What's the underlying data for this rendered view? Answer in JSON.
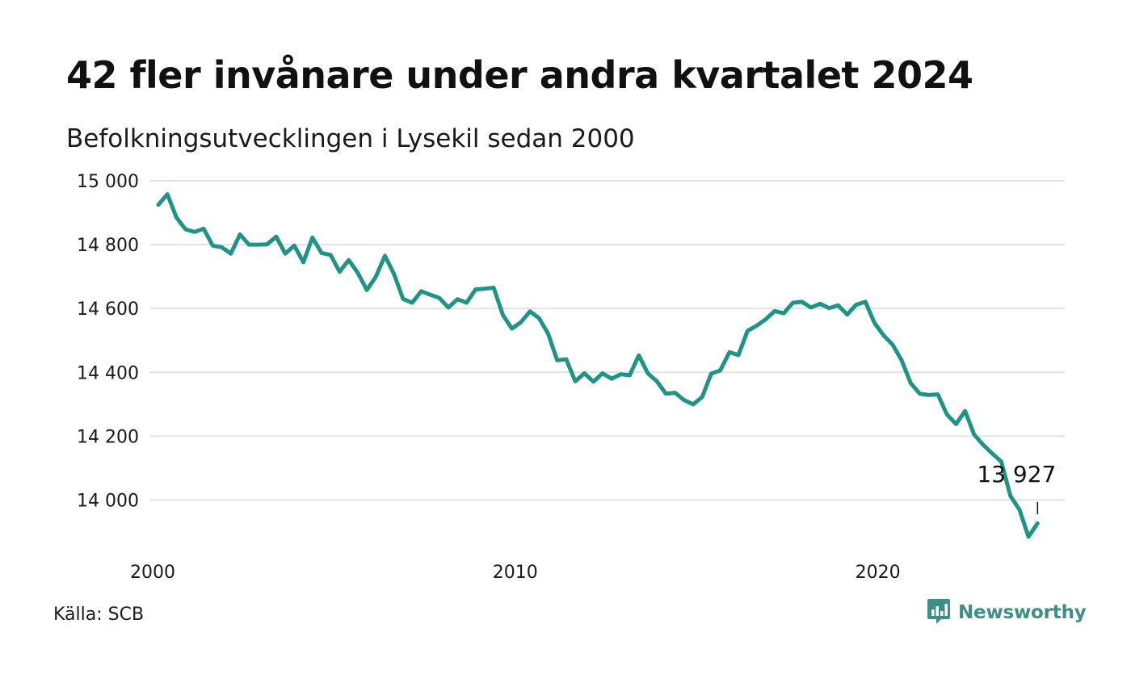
{
  "title": "42 fler invånare under andra kvartalet 2024",
  "subtitle": "Befolkningsutvecklingen i Lysekil sedan 2000",
  "source": "Källa: SCB",
  "brand": {
    "name": "Newsworthy",
    "icon": "newsworthy-logo-icon"
  },
  "colors": {
    "line": "#1f9486",
    "grid": "#e1e1e6",
    "text": "#111111",
    "brand": "#3e8d86"
  },
  "chart_data": {
    "type": "line",
    "title": "42 fler invånare under andra kvartalet 2024",
    "subtitle": "Befolkningsutvecklingen i Lysekil sedan 2000",
    "xlabel": "",
    "ylabel": "",
    "x_ticks": [
      2000,
      2010,
      2020
    ],
    "y_ticks": [
      {
        "value": 14000,
        "label": "14 000"
      },
      {
        "value": 14200,
        "label": "14 200"
      },
      {
        "value": 14400,
        "label": "14 400"
      },
      {
        "value": 14600,
        "label": "14 600"
      },
      {
        "value": 14800,
        "label": "14 800"
      },
      {
        "value": 15000,
        "label": "15 000"
      }
    ],
    "xlim": [
      2000,
      2026.3
    ],
    "ylim": [
      13880,
      15000
    ],
    "grid": true,
    "annotation": {
      "x": 2024.25,
      "value": 13927,
      "label": "13 927"
    },
    "x": [
      2000.0,
      2000.25,
      2000.5,
      2000.75,
      2001.0,
      2001.25,
      2001.5,
      2001.75,
      2002.0,
      2002.25,
      2002.5,
      2002.75,
      2003.0,
      2003.25,
      2003.5,
      2003.75,
      2004.0,
      2004.25,
      2004.5,
      2004.75,
      2005.0,
      2005.25,
      2005.5,
      2005.75,
      2006.0,
      2006.25,
      2006.5,
      2006.75,
      2007.0,
      2007.25,
      2007.5,
      2007.75,
      2008.0,
      2008.25,
      2008.5,
      2008.75,
      2009.0,
      2009.25,
      2009.5,
      2009.75,
      2010.0,
      2010.25,
      2010.5,
      2010.75,
      2011.0,
      2011.25,
      2011.5,
      2011.75,
      2012.0,
      2012.25,
      2012.5,
      2012.75,
      2013.0,
      2013.25,
      2013.5,
      2013.75,
      2014.0,
      2014.25,
      2014.5,
      2014.75,
      2015.0,
      2015.25,
      2015.5,
      2015.75,
      2016.0,
      2016.25,
      2016.5,
      2016.75,
      2017.0,
      2017.25,
      2017.5,
      2017.75,
      2018.0,
      2018.25,
      2018.5,
      2018.75,
      2019.0,
      2019.25,
      2019.5,
      2019.75,
      2020.0,
      2020.25,
      2020.5,
      2020.75,
      2021.0,
      2021.25,
      2021.5,
      2021.75,
      2022.0,
      2022.25,
      2022.5,
      2022.75,
      2023.0,
      2023.25,
      2023.5,
      2023.75,
      2024.0,
      2024.25
    ],
    "series": [
      {
        "values": [
          14925,
          14958,
          14885,
          14848,
          14840,
          14850,
          14797,
          14792,
          14772,
          14832,
          14800,
          14800,
          14801,
          14825,
          14772,
          14797,
          14745,
          14822,
          14774,
          14768,
          14715,
          14752,
          14712,
          14658,
          14700,
          14765,
          14708,
          14630,
          14618,
          14654,
          14643,
          14633,
          14603,
          14629,
          14618,
          14660,
          14662,
          14665,
          14580,
          14537,
          14557,
          14591,
          14570,
          14521,
          14438,
          14441,
          14372,
          14397,
          14371,
          14397,
          14380,
          14394,
          14391,
          14453,
          14397,
          14372,
          14333,
          14336,
          14313,
          14300,
          14323,
          14396,
          14406,
          14463,
          14454,
          14530,
          14546,
          14566,
          14592,
          14585,
          14618,
          14621,
          14603,
          14615,
          14601,
          14610,
          14581,
          14612,
          14621,
          14555,
          14516,
          14487,
          14438,
          14366,
          14333,
          14329,
          14331,
          14268,
          14238,
          14279,
          14205,
          14173,
          14146,
          14120,
          14013,
          13970,
          13885,
          13927
        ]
      }
    ]
  }
}
